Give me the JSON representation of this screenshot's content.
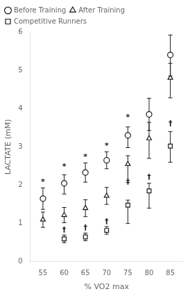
{
  "chart_data": {
    "type": "scatter",
    "xlabel": "% VO2 max",
    "ylabel": "LACTATE (mM)",
    "x": [
      55,
      60,
      65,
      70,
      75,
      80,
      85
    ],
    "xlim": [
      52,
      88
    ],
    "ylim": [
      0,
      6.0
    ],
    "xticks": [
      55,
      60,
      65,
      70,
      75,
      80,
      85
    ],
    "yticks": [
      0,
      1,
      2,
      3,
      4,
      5,
      6
    ],
    "grid": false,
    "legend": "upper left",
    "series": [
      {
        "name": "Before Training",
        "color": "#1a1a1a",
        "marker": "circle",
        "values": [
          1.65,
          2.05,
          2.33,
          2.65,
          3.3,
          3.85,
          5.4
        ],
        "yerr_low": [
          0.28,
          0.28,
          0.25,
          0.22,
          0.32,
          0.42,
          0.55
        ],
        "yerr_high": [
          0.28,
          0.22,
          0.25,
          0.22,
          0.22,
          0.42,
          0.52
        ]
      },
      {
        "name": "After Training",
        "color": "#1a1a1a",
        "marker": "triangle",
        "values": [
          1.1,
          1.22,
          1.4,
          1.72,
          2.55,
          3.22,
          4.8
        ],
        "yerr_low": [
          0.2,
          0.2,
          0.22,
          0.22,
          0.48,
          0.52,
          0.52
        ],
        "yerr_high": [
          0.2,
          0.2,
          0.22,
          0.22,
          0.22,
          0.42,
          0.38
        ]
      },
      {
        "name": "Competitive Runners",
        "color": "#1a1a1a",
        "marker": "square",
        "values": [
          null,
          0.6,
          0.65,
          0.82,
          1.48,
          1.85,
          3.02
        ],
        "yerr_low": [
          null,
          0.1,
          0.1,
          0.1,
          0.48,
          0.45,
          0.42
        ],
        "yerr_high": [
          null,
          0.1,
          0.1,
          0.1,
          0.13,
          0.2,
          0.38
        ]
      }
    ],
    "annotations": [
      {
        "text": "*",
        "x": 55,
        "y": 1.98
      },
      {
        "text": "*",
        "x": 60,
        "y": 2.38
      },
      {
        "text": "*",
        "x": 65,
        "y": 2.63
      },
      {
        "text": "*",
        "x": 70,
        "y": 2.92
      },
      {
        "text": "*",
        "x": 75,
        "y": 3.67
      },
      {
        "text": "†",
        "x": 60,
        "y": 0.73
      },
      {
        "text": "†",
        "x": 65,
        "y": 0.78
      },
      {
        "text": "†",
        "x": 70,
        "y": 0.95
      },
      {
        "text": "†",
        "x": 75,
        "y": 1.98
      },
      {
        "text": "†",
        "x": 80,
        "y": 2.1
      },
      {
        "text": "†",
        "x": 85,
        "y": 3.5
      }
    ]
  }
}
